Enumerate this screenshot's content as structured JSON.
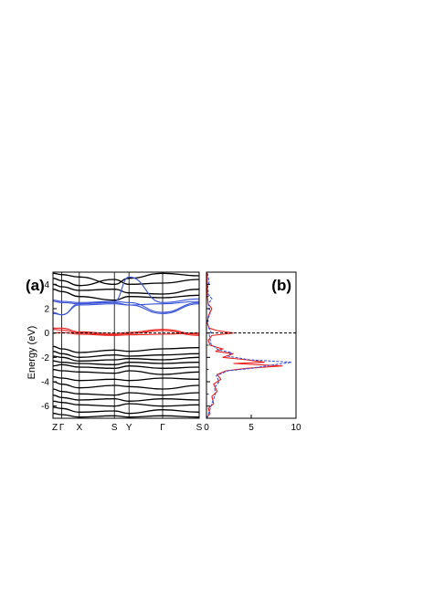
{
  "figure": {
    "panel_a_label": "(a)",
    "panel_b_label": "(b)"
  },
  "chart_data": [
    {
      "type": "line",
      "panel": "(a)",
      "title": "",
      "xlabel": "",
      "ylabel": "Energy (eV)",
      "ylim": [
        -7,
        5
      ],
      "k_points": [
        "Z",
        "Γ",
        "X",
        "S",
        "Y",
        "Γ",
        "S"
      ],
      "k_positions": [
        0,
        0.06,
        0.18,
        0.42,
        0.52,
        0.75,
        1.0
      ],
      "y_ticks": [
        -6,
        -4,
        -2,
        0,
        2,
        4
      ],
      "fermi_level": 0,
      "colors": {
        "valence": "#000000",
        "top_valence": "#e8201c",
        "conduction_low": "#3a54d8",
        "conduction_high": "#000000",
        "fermi": "#000000"
      },
      "series": [
        {
          "group": "conduction_high",
          "color": "#000000",
          "values": [
            4.9,
            4.8,
            4.6,
            4.0,
            4.5,
            4.9,
            4.7
          ]
        },
        {
          "group": "conduction_high",
          "color": "#000000",
          "values": [
            4.5,
            4.3,
            3.9,
            4.4,
            4.0,
            4.1,
            4.4
          ]
        },
        {
          "group": "conduction_high",
          "color": "#000000",
          "values": [
            4.0,
            3.8,
            3.5,
            3.6,
            3.3,
            3.2,
            3.6
          ]
        },
        {
          "group": "conduction_high",
          "color": "#000000",
          "values": [
            3.6,
            3.4,
            3.0,
            2.7,
            3.0,
            2.9,
            3.1
          ]
        },
        {
          "group": "conduction_low",
          "color": "#3a54d8",
          "values": [
            2.7,
            2.6,
            2.5,
            2.6,
            4.6,
            2.5,
            2.8
          ]
        },
        {
          "group": "conduction_low",
          "color": "#3a54d8",
          "values": [
            2.6,
            2.5,
            2.4,
            2.5,
            2.3,
            2.4,
            2.6
          ]
        },
        {
          "group": "conduction_low",
          "color": "#3a54d8",
          "values": [
            1.7,
            1.5,
            2.4,
            2.6,
            2.5,
            1.7,
            2.5
          ]
        },
        {
          "group": "conduction_low",
          "color": "#3a54d8",
          "values": [
            1.6,
            1.5,
            2.3,
            2.4,
            2.3,
            1.6,
            2.4
          ]
        },
        {
          "group": "top_valence",
          "color": "#e8201c",
          "values": [
            0.4,
            0.4,
            0.1,
            -0.05,
            0.05,
            0.3,
            -0.1
          ]
        },
        {
          "group": "top_valence",
          "color": "#e8201c",
          "values": [
            0.3,
            0.25,
            0.0,
            -0.15,
            -0.05,
            0.2,
            -0.2
          ]
        },
        {
          "group": "top_valence",
          "color": "#e8201c",
          "values": [
            0.0,
            0.05,
            -0.1,
            -0.2,
            -0.15,
            -0.1,
            0.0
          ]
        },
        {
          "group": "valence",
          "color": "#000000",
          "values": [
            -1.1,
            -1.3,
            -1.6,
            -1.4,
            -1.5,
            -1.3,
            -1.2
          ]
        },
        {
          "group": "valence",
          "color": "#000000",
          "values": [
            -1.5,
            -1.7,
            -2.0,
            -1.8,
            -1.9,
            -1.8,
            -1.7
          ]
        },
        {
          "group": "valence",
          "color": "#000000",
          "values": [
            -1.9,
            -2.0,
            -2.3,
            -2.2,
            -2.1,
            -2.2,
            -2.0
          ]
        },
        {
          "group": "valence",
          "color": "#000000",
          "values": [
            -2.3,
            -2.4,
            -2.5,
            -2.6,
            -2.4,
            -2.5,
            -2.4
          ]
        },
        {
          "group": "valence",
          "color": "#000000",
          "values": [
            -2.7,
            -2.6,
            -2.8,
            -2.9,
            -2.7,
            -2.9,
            -2.8
          ]
        },
        {
          "group": "valence",
          "color": "#000000",
          "values": [
            -3.0,
            -3.1,
            -3.2,
            -3.3,
            -3.1,
            -3.4,
            -3.2
          ]
        },
        {
          "group": "valence",
          "color": "#000000",
          "values": [
            -3.6,
            -3.7,
            -3.9,
            -3.8,
            -3.9,
            -3.7,
            -3.8
          ]
        },
        {
          "group": "valence",
          "color": "#000000",
          "values": [
            -4.0,
            -4.2,
            -4.5,
            -4.3,
            -4.4,
            -4.6,
            -4.3
          ]
        },
        {
          "group": "valence",
          "color": "#000000",
          "values": [
            -4.6,
            -4.8,
            -5.0,
            -5.1,
            -4.9,
            -5.1,
            -4.9
          ]
        },
        {
          "group": "valence",
          "color": "#000000",
          "values": [
            -5.1,
            -5.3,
            -5.5,
            -5.4,
            -5.6,
            -5.4,
            -5.5
          ]
        },
        {
          "group": "valence",
          "color": "#000000",
          "values": [
            -5.6,
            -5.7,
            -5.9,
            -6.0,
            -5.8,
            -6.0,
            -5.9
          ]
        },
        {
          "group": "valence",
          "color": "#000000",
          "values": [
            -6.1,
            -6.2,
            -6.5,
            -6.4,
            -6.6,
            -6.3,
            -6.5
          ]
        },
        {
          "group": "valence",
          "color": "#000000",
          "values": [
            -6.6,
            -6.7,
            -6.9,
            -6.8,
            -6.9,
            -6.8,
            -6.9
          ]
        }
      ]
    },
    {
      "type": "line",
      "panel": "(b)",
      "title": "",
      "xlabel": "",
      "ylabel": "",
      "xlim": [
        0,
        10
      ],
      "ylim": [
        -7,
        5
      ],
      "x_ticks": [
        0,
        5,
        10
      ],
      "fermi_level": 0,
      "series": [
        {
          "color": "#e8201c",
          "style": "solid",
          "points": [
            [
              0,
              -7
            ],
            [
              0.4,
              -6.6
            ],
            [
              0.2,
              -6.2
            ],
            [
              0.8,
              -5.8
            ],
            [
              0.6,
              -5.2
            ],
            [
              1.2,
              -4.8
            ],
            [
              0.8,
              -4.2
            ],
            [
              1.6,
              -3.8
            ],
            [
              1.2,
              -3.4
            ],
            [
              2.2,
              -3.1
            ],
            [
              4.5,
              -2.9
            ],
            [
              8.5,
              -2.7
            ],
            [
              3.0,
              -2.5
            ],
            [
              6.5,
              -2.4
            ],
            [
              4.5,
              -2.2
            ],
            [
              1.8,
              -2.0
            ],
            [
              3.0,
              -1.7
            ],
            [
              1.0,
              -1.5
            ],
            [
              1.8,
              -1.3
            ],
            [
              0.4,
              -1.0
            ],
            [
              0.2,
              -0.6
            ],
            [
              0.6,
              -0.2
            ],
            [
              3.0,
              0.0
            ],
            [
              1.2,
              0.2
            ],
            [
              0.3,
              0.4
            ],
            [
              0.1,
              0.8
            ],
            [
              0.2,
              1.4
            ],
            [
              0.6,
              2.0
            ],
            [
              0.2,
              2.4
            ],
            [
              0.1,
              3.0
            ],
            [
              0.1,
              4.0
            ],
            [
              0.05,
              5.0
            ]
          ]
        },
        {
          "color": "#3a54d8",
          "style": "dashed",
          "points": [
            [
              0,
              -7
            ],
            [
              0.3,
              -6.5
            ],
            [
              0.5,
              -6.0
            ],
            [
              0.7,
              -5.6
            ],
            [
              1.0,
              -5.0
            ],
            [
              0.9,
              -4.5
            ],
            [
              1.4,
              -4.0
            ],
            [
              1.1,
              -3.5
            ],
            [
              2.4,
              -3.1
            ],
            [
              5.0,
              -2.9
            ],
            [
              7.6,
              -2.6
            ],
            [
              9.5,
              -2.4
            ],
            [
              4.8,
              -2.2
            ],
            [
              2.4,
              -1.9
            ],
            [
              2.8,
              -1.6
            ],
            [
              1.4,
              -1.4
            ],
            [
              1.0,
              -1.2
            ],
            [
              0.5,
              -0.9
            ],
            [
              0.4,
              -0.5
            ],
            [
              0.3,
              -0.1
            ],
            [
              0.5,
              0.1
            ],
            [
              0.2,
              0.5
            ],
            [
              0.1,
              1.0
            ],
            [
              0.4,
              1.6
            ],
            [
              0.2,
              2.4
            ],
            [
              0.6,
              2.8
            ],
            [
              0.2,
              3.2
            ],
            [
              0.15,
              3.8
            ],
            [
              0.3,
              4.2
            ],
            [
              0.1,
              5.0
            ]
          ]
        }
      ]
    }
  ]
}
